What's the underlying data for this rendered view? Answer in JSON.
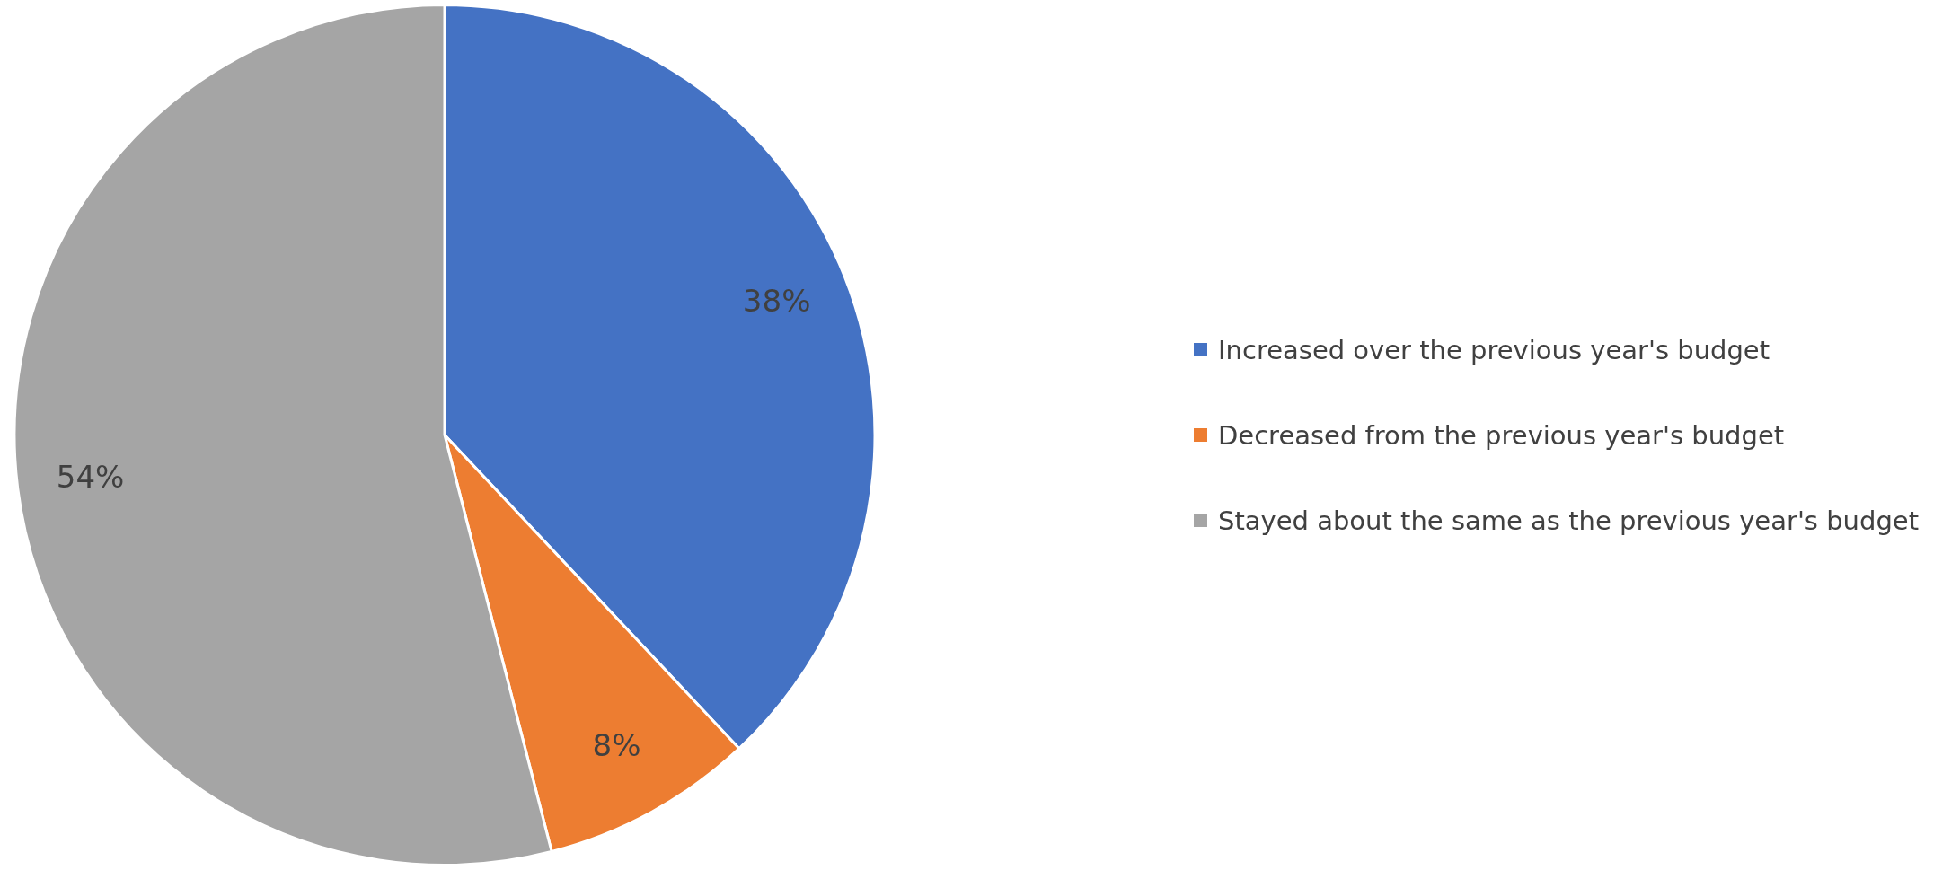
{
  "chart_data": {
    "type": "pie",
    "categories": [
      "Increased over the previous year's budget",
      "Decreased from the previous year's budget",
      "Stayed about the same as the previous year's budget"
    ],
    "values": [
      38,
      8,
      54
    ],
    "colors": [
      "#4472c4",
      "#ed7d31",
      "#a5a5a5"
    ],
    "value_labels": [
      "38%",
      "8%",
      "54%"
    ],
    "legend": "right"
  }
}
